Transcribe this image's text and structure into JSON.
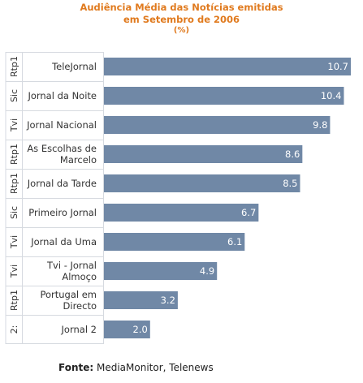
{
  "chart_data": {
    "type": "bar",
    "orientation": "horizontal",
    "title_line1": "Audiência Média das Notícias emitidas",
    "title_line2": "em Setembro de 2006",
    "unit": "(%)",
    "categories": [
      "TeleJornal",
      "Jornal da Noite",
      "Jornal Nacional",
      "As Escolhas de Marcelo",
      "Jornal da Tarde",
      "Primeiro Jornal",
      "Jornal da Uma",
      "Tvi - Jornal Almoço",
      "Portugal em Directo",
      "Jornal 2"
    ],
    "category_lines": [
      [
        "TeleJornal"
      ],
      [
        "Jornal da Noite"
      ],
      [
        "Jornal Nacional"
      ],
      [
        "As Escolhas de",
        "Marcelo"
      ],
      [
        "Jornal da Tarde"
      ],
      [
        "Primeiro Jornal"
      ],
      [
        "Jornal da Uma"
      ],
      [
        "Tvi - Jornal",
        "Almoço"
      ],
      [
        "Portugal em",
        "Directo"
      ],
      [
        "Jornal 2"
      ]
    ],
    "channels": [
      "Rtp1",
      "Sic",
      "Tvi",
      "Rtp1",
      "Rtp1",
      "Sic",
      "Tvi",
      "Tvi",
      "Rtp1",
      "2:"
    ],
    "values": [
      10.7,
      10.4,
      9.8,
      8.6,
      8.5,
      6.7,
      6.1,
      4.9,
      3.2,
      2.0
    ],
    "value_labels": [
      "10.7",
      "10.4",
      "9.8",
      "8.6",
      "8.5",
      "6.7",
      "6.1",
      "4.9",
      "3.2",
      "2.0"
    ],
    "xlim": [
      0,
      10.7
    ],
    "grid": false,
    "bar_color": "#7088a6",
    "label_color": "#333333"
  },
  "source": {
    "label": "Fonte:",
    "text": " MediaMonitor, Telenews"
  }
}
